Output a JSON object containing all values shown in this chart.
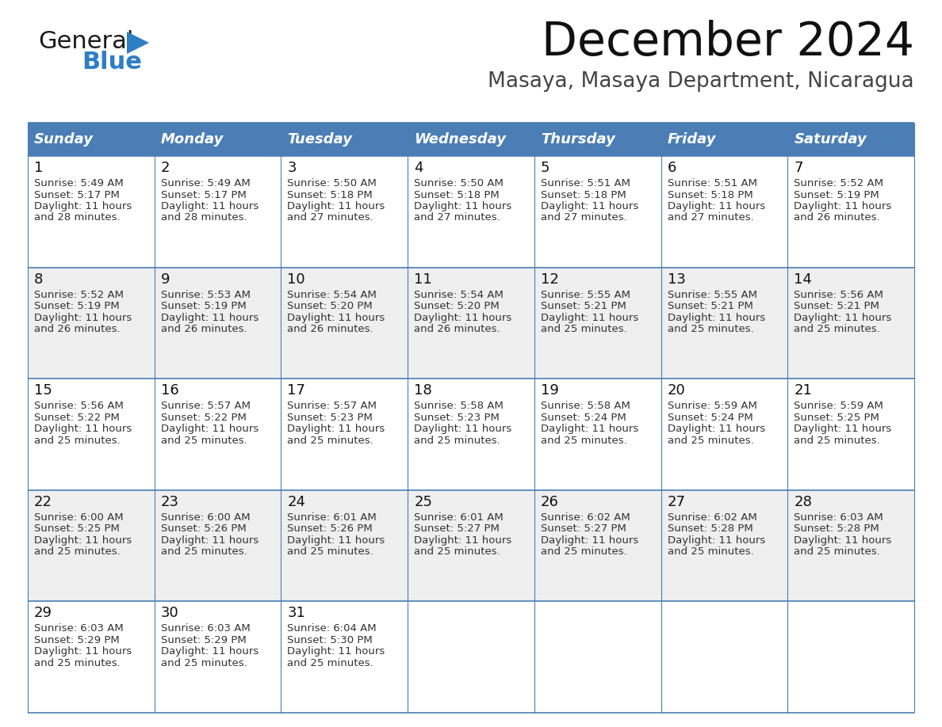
{
  "title": "December 2024",
  "subtitle": "Masaya, Masaya Department, Nicaragua",
  "header_bg": "#4A7EB5",
  "header_text": "#FFFFFF",
  "row_bg_light": "#FFFFFF",
  "row_bg_dark": "#EFEFEF",
  "border_color": "#4A7EB5",
  "text_color": "#333333",
  "day_num_color": "#111111",
  "day_headers": [
    "Sunday",
    "Monday",
    "Tuesday",
    "Wednesday",
    "Thursday",
    "Friday",
    "Saturday"
  ],
  "days": [
    {
      "day": 1,
      "col": 0,
      "row": 0,
      "sunrise": "5:49 AM",
      "sunset": "5:17 PM",
      "daylight": "11 hours and 28 minutes"
    },
    {
      "day": 2,
      "col": 1,
      "row": 0,
      "sunrise": "5:49 AM",
      "sunset": "5:17 PM",
      "daylight": "11 hours and 28 minutes"
    },
    {
      "day": 3,
      "col": 2,
      "row": 0,
      "sunrise": "5:50 AM",
      "sunset": "5:18 PM",
      "daylight": "11 hours and 27 minutes"
    },
    {
      "day": 4,
      "col": 3,
      "row": 0,
      "sunrise": "5:50 AM",
      "sunset": "5:18 PM",
      "daylight": "11 hours and 27 minutes"
    },
    {
      "day": 5,
      "col": 4,
      "row": 0,
      "sunrise": "5:51 AM",
      "sunset": "5:18 PM",
      "daylight": "11 hours and 27 minutes"
    },
    {
      "day": 6,
      "col": 5,
      "row": 0,
      "sunrise": "5:51 AM",
      "sunset": "5:18 PM",
      "daylight": "11 hours and 27 minutes"
    },
    {
      "day": 7,
      "col": 6,
      "row": 0,
      "sunrise": "5:52 AM",
      "sunset": "5:19 PM",
      "daylight": "11 hours and 26 minutes"
    },
    {
      "day": 8,
      "col": 0,
      "row": 1,
      "sunrise": "5:52 AM",
      "sunset": "5:19 PM",
      "daylight": "11 hours and 26 minutes"
    },
    {
      "day": 9,
      "col": 1,
      "row": 1,
      "sunrise": "5:53 AM",
      "sunset": "5:19 PM",
      "daylight": "11 hours and 26 minutes"
    },
    {
      "day": 10,
      "col": 2,
      "row": 1,
      "sunrise": "5:54 AM",
      "sunset": "5:20 PM",
      "daylight": "11 hours and 26 minutes"
    },
    {
      "day": 11,
      "col": 3,
      "row": 1,
      "sunrise": "5:54 AM",
      "sunset": "5:20 PM",
      "daylight": "11 hours and 26 minutes"
    },
    {
      "day": 12,
      "col": 4,
      "row": 1,
      "sunrise": "5:55 AM",
      "sunset": "5:21 PM",
      "daylight": "11 hours and 25 minutes"
    },
    {
      "day": 13,
      "col": 5,
      "row": 1,
      "sunrise": "5:55 AM",
      "sunset": "5:21 PM",
      "daylight": "11 hours and 25 minutes"
    },
    {
      "day": 14,
      "col": 6,
      "row": 1,
      "sunrise": "5:56 AM",
      "sunset": "5:21 PM",
      "daylight": "11 hours and 25 minutes"
    },
    {
      "day": 15,
      "col": 0,
      "row": 2,
      "sunrise": "5:56 AM",
      "sunset": "5:22 PM",
      "daylight": "11 hours and 25 minutes"
    },
    {
      "day": 16,
      "col": 1,
      "row": 2,
      "sunrise": "5:57 AM",
      "sunset": "5:22 PM",
      "daylight": "11 hours and 25 minutes"
    },
    {
      "day": 17,
      "col": 2,
      "row": 2,
      "sunrise": "5:57 AM",
      "sunset": "5:23 PM",
      "daylight": "11 hours and 25 minutes"
    },
    {
      "day": 18,
      "col": 3,
      "row": 2,
      "sunrise": "5:58 AM",
      "sunset": "5:23 PM",
      "daylight": "11 hours and 25 minutes"
    },
    {
      "day": 19,
      "col": 4,
      "row": 2,
      "sunrise": "5:58 AM",
      "sunset": "5:24 PM",
      "daylight": "11 hours and 25 minutes"
    },
    {
      "day": 20,
      "col": 5,
      "row": 2,
      "sunrise": "5:59 AM",
      "sunset": "5:24 PM",
      "daylight": "11 hours and 25 minutes"
    },
    {
      "day": 21,
      "col": 6,
      "row": 2,
      "sunrise": "5:59 AM",
      "sunset": "5:25 PM",
      "daylight": "11 hours and 25 minutes"
    },
    {
      "day": 22,
      "col": 0,
      "row": 3,
      "sunrise": "6:00 AM",
      "sunset": "5:25 PM",
      "daylight": "11 hours and 25 minutes"
    },
    {
      "day": 23,
      "col": 1,
      "row": 3,
      "sunrise": "6:00 AM",
      "sunset": "5:26 PM",
      "daylight": "11 hours and 25 minutes"
    },
    {
      "day": 24,
      "col": 2,
      "row": 3,
      "sunrise": "6:01 AM",
      "sunset": "5:26 PM",
      "daylight": "11 hours and 25 minutes"
    },
    {
      "day": 25,
      "col": 3,
      "row": 3,
      "sunrise": "6:01 AM",
      "sunset": "5:27 PM",
      "daylight": "11 hours and 25 minutes"
    },
    {
      "day": 26,
      "col": 4,
      "row": 3,
      "sunrise": "6:02 AM",
      "sunset": "5:27 PM",
      "daylight": "11 hours and 25 minutes"
    },
    {
      "day": 27,
      "col": 5,
      "row": 3,
      "sunrise": "6:02 AM",
      "sunset": "5:28 PM",
      "daylight": "11 hours and 25 minutes"
    },
    {
      "day": 28,
      "col": 6,
      "row": 3,
      "sunrise": "6:03 AM",
      "sunset": "5:28 PM",
      "daylight": "11 hours and 25 minutes"
    },
    {
      "day": 29,
      "col": 0,
      "row": 4,
      "sunrise": "6:03 AM",
      "sunset": "5:29 PM",
      "daylight": "11 hours and 25 minutes"
    },
    {
      "day": 30,
      "col": 1,
      "row": 4,
      "sunrise": "6:03 AM",
      "sunset": "5:29 PM",
      "daylight": "11 hours and 25 minutes"
    },
    {
      "day": 31,
      "col": 2,
      "row": 4,
      "sunrise": "6:04 AM",
      "sunset": "5:30 PM",
      "daylight": "11 hours and 25 minutes"
    }
  ],
  "num_rows": 5,
  "num_cols": 7,
  "logo_text1": "General",
  "logo_text2": "Blue",
  "logo_color1": "#1a1a1a",
  "logo_color2": "#2E7EC5",
  "logo_triangle_color": "#2E7EC5"
}
